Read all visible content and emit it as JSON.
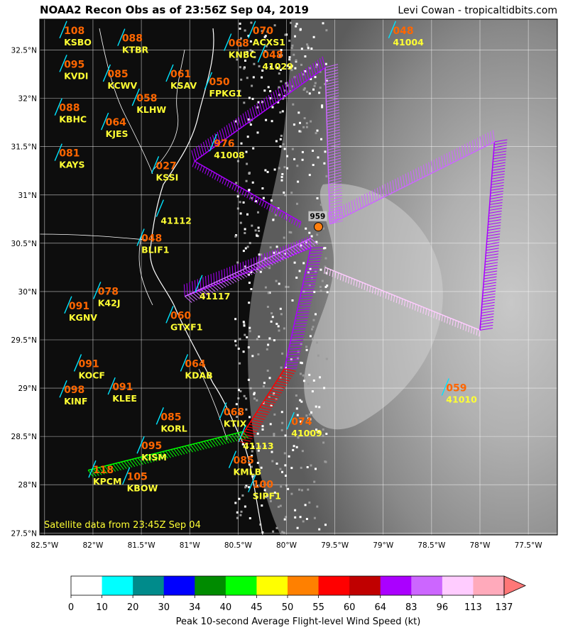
{
  "header": {
    "title": "NOAA2 Recon Obs as of 23:56Z Sep 04, 2019",
    "credit": "Levi Cowan - tropicaltidbits.com"
  },
  "map": {
    "lon_range": [
      -82.55,
      -77.2
    ],
    "lat_range": [
      27.48,
      32.82
    ],
    "lon_ticks": [
      -82.5,
      -82,
      -81.5,
      -81,
      -80.5,
      -80,
      -79.5,
      -79,
      -78.5,
      -78,
      -77.5
    ],
    "lon_tick_labels": [
      "82.5°W",
      "82°W",
      "81.5°W",
      "81°W",
      "80.5°W",
      "80°W",
      "79.5°W",
      "79°W",
      "78.5°W",
      "78°W",
      "77.5°W"
    ],
    "lat_ticks": [
      27.5,
      28,
      28.5,
      29,
      29.5,
      30,
      30.5,
      31,
      31.5,
      32,
      32.5
    ],
    "lat_tick_labels": [
      "27.5°N",
      "28°N",
      "28.5°N",
      "29°N",
      "29.5°N",
      "30°N",
      "30.5°N",
      "31°N",
      "31.5°N",
      "32°N",
      "32.5°N"
    ],
    "grid": true,
    "satellite_note": "Satellite data from 23:45Z Sep 04",
    "storm_center": {
      "lon": -79.67,
      "lat": 30.67,
      "pressure_label": "959"
    }
  },
  "stations": [
    {
      "id": "KSBO",
      "value": "108",
      "lon": -82.3,
      "lat": 32.55
    },
    {
      "id": "KTBR",
      "value": "088",
      "lon": -81.7,
      "lat": 32.47
    },
    {
      "id": "KVDI",
      "value": "095",
      "lon": -82.3,
      "lat": 32.2
    },
    {
      "id": "KCWV",
      "value": "085",
      "lon": -81.85,
      "lat": 32.1
    },
    {
      "id": "KSAV",
      "value": "061",
      "lon": -81.2,
      "lat": 32.1
    },
    {
      "id": "KBHC",
      "value": "088",
      "lon": -82.35,
      "lat": 31.75
    },
    {
      "id": "KLHW",
      "value": "058",
      "lon": -81.55,
      "lat": 31.85
    },
    {
      "id": "KJES",
      "value": "064",
      "lon": -81.87,
      "lat": 31.6
    },
    {
      "id": "KAYS",
      "value": "081",
      "lon": -82.35,
      "lat": 31.28
    },
    {
      "id": "KSSI",
      "value": "027",
      "lon": -81.35,
      "lat": 31.15
    },
    {
      "id": "41112",
      "value": "",
      "lon": -81.3,
      "lat": 30.7
    },
    {
      "id": "BLIF1",
      "value": "048",
      "lon": -81.5,
      "lat": 30.4
    },
    {
      "id": "K42J",
      "value": "078",
      "lon": -81.95,
      "lat": 29.85
    },
    {
      "id": "KGNV",
      "value": "091",
      "lon": -82.25,
      "lat": 29.7
    },
    {
      "id": "GTXF1",
      "value": "060",
      "lon": -81.2,
      "lat": 29.6
    },
    {
      "id": "KOCF",
      "value": "091",
      "lon": -82.15,
      "lat": 29.1
    },
    {
      "id": "KDAB",
      "value": "064",
      "lon": -81.05,
      "lat": 29.1
    },
    {
      "id": "KINF",
      "value": "098",
      "lon": -82.3,
      "lat": 28.83
    },
    {
      "id": "KLEE",
      "value": "091",
      "lon": -81.8,
      "lat": 28.86
    },
    {
      "id": "KORL",
      "value": "085",
      "lon": -81.3,
      "lat": 28.55
    },
    {
      "id": "KISM",
      "value": "095",
      "lon": -81.5,
      "lat": 28.25
    },
    {
      "id": "KPCM",
      "value": "118",
      "lon": -82.0,
      "lat": 28.0
    },
    {
      "id": "KBOW",
      "value": "105",
      "lon": -81.65,
      "lat": 27.93
    },
    {
      "id": "KMLB",
      "value": "085",
      "lon": -80.55,
      "lat": 28.1
    },
    {
      "id": "SIPF1",
      "value": "100",
      "lon": -80.35,
      "lat": 27.85
    },
    {
      "id": "KTIX",
      "value": "068",
      "lon": -80.65,
      "lat": 28.6
    },
    {
      "id": "41113",
      "value": "",
      "lon": -80.45,
      "lat": 28.37
    },
    {
      "id": "41009",
      "value": "074",
      "lon": -79.95,
      "lat": 28.5
    },
    {
      "id": "41010",
      "value": "059",
      "lon": -78.35,
      "lat": 28.85
    },
    {
      "id": "41008",
      "value": "976",
      "lon": -80.75,
      "lat": 31.38
    },
    {
      "id": "FPKG1",
      "value": "050",
      "lon": -80.8,
      "lat": 32.02
    },
    {
      "id": "KNBC",
      "value": "068",
      "lon": -80.6,
      "lat": 32.42
    },
    {
      "id": "ACXS1",
      "value": "070",
      "lon": -80.35,
      "lat": 32.55
    },
    {
      "id": "41004",
      "value": "048",
      "lon": -78.9,
      "lat": 32.55
    },
    {
      "id": "41029",
      "value": "048",
      "lon": -80.25,
      "lat": 32.3
    },
    {
      "id": "41117",
      "value": "",
      "lon": -80.9,
      "lat": 29.92
    }
  ],
  "flight_legs": [
    {
      "from": [
        -80.02,
        29.2
      ],
      "to": [
        -79.75,
        30.45
      ],
      "color": "#aa00ff"
    },
    {
      "from": [
        -80.5,
        28.45
      ],
      "to": [
        -80.02,
        29.2
      ],
      "color": "#ff0000"
    },
    {
      "from": [
        -79.75,
        30.45
      ],
      "to": [
        -81.05,
        29.95
      ],
      "color": "#aa00ff"
    },
    {
      "from": [
        -81.05,
        29.95
      ],
      "to": [
        -79.75,
        30.55
      ],
      "color": "#cc66ff"
    },
    {
      "from": [
        -79.6,
        30.25
      ],
      "to": [
        -78.0,
        29.6
      ],
      "color": "#ffccff"
    },
    {
      "from": [
        -78.0,
        29.6
      ],
      "to": [
        -77.85,
        31.55
      ],
      "color": "#aa00ff"
    },
    {
      "from": [
        -77.85,
        31.55
      ],
      "to": [
        -79.55,
        30.7
      ],
      "color": "#cc66ff"
    },
    {
      "from": [
        -79.55,
        30.7
      ],
      "to": [
        -79.6,
        32.32
      ],
      "color": "#cc66ff"
    },
    {
      "from": [
        -79.6,
        32.32
      ],
      "to": [
        -80.95,
        31.35
      ],
      "color": "#aa00ff"
    },
    {
      "from": [
        -80.95,
        31.35
      ],
      "to": [
        -79.85,
        30.72
      ],
      "color": "#aa00ff"
    },
    {
      "from": [
        -82.05,
        28.15
      ],
      "to": [
        -80.45,
        28.55
      ],
      "color": "#00ff00"
    }
  ],
  "colorbar": {
    "title": "Peak 10-second Average Flight-level Wind Speed (kt)",
    "ticks": [
      "0",
      "10",
      "20",
      "30",
      "34",
      "40",
      "45",
      "50",
      "55",
      "60",
      "64",
      "83",
      "96",
      "113",
      "137"
    ],
    "colors": [
      "#ffffff",
      "#00ffff",
      "#008b8b",
      "#0000ff",
      "#008b00",
      "#00ff00",
      "#ffff00",
      "#ff8000",
      "#ff0000",
      "#c00000",
      "#aa00ff",
      "#cc66ff",
      "#ffccff",
      "#ffaabb"
    ],
    "extend_color": "#ff7777"
  }
}
